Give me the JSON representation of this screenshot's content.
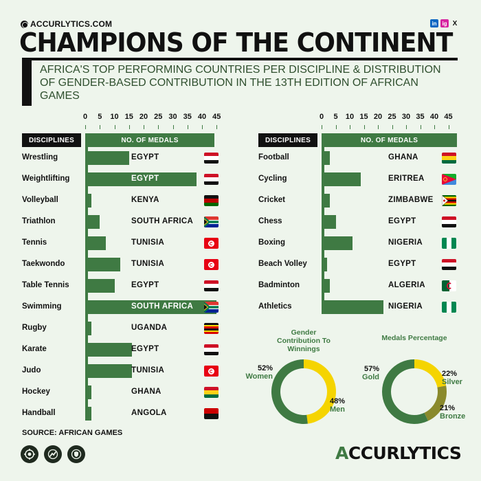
{
  "header": {
    "brand": "ACCURLYTICS.COM",
    "title": "CHAMPIONS OF THE CONTINENT",
    "subtitle": "AFRICA'S TOP PERFORMING COUNTRIES PER DISCIPLINE & DISTRIBUTION OF GENDER-BASED CONTRIBUTION IN  THE 13TH EDITION OF AFRICAN GAMES",
    "social": [
      "in",
      "ig",
      "X"
    ]
  },
  "footer": {
    "source": "SOURCE: AFRICAN GAMES",
    "brand_first": "A",
    "brand_rest": "CCURLYTICS",
    "icons": [
      "target-icon",
      "runner-icon",
      "shield-icon"
    ]
  },
  "colors": {
    "bar": "#3f7a43",
    "dark": "#111111",
    "yellow": "#f5d400",
    "olive": "#8a8a2c",
    "bg": "#eef5ec"
  },
  "chart_data": [
    {
      "type": "bar",
      "orientation": "horizontal",
      "header_label": "DISCIPLINES",
      "value_label": "NO. OF MEDALS",
      "ticks": [
        0,
        5,
        10,
        15,
        20,
        25,
        30,
        35,
        40,
        45
      ],
      "xlim": [
        0,
        47
      ],
      "rows": [
        {
          "discipline": "Wrestling",
          "value": 15,
          "country": "EGYPT",
          "flag": "egypt"
        },
        {
          "discipline": "Weightlifting",
          "value": 38,
          "country": "EGYPT",
          "flag": "egypt"
        },
        {
          "discipline": "Volleyball",
          "value": 2,
          "country": "KENYA",
          "flag": "kenya"
        },
        {
          "discipline": "Triathlon",
          "value": 5,
          "country": "SOUTH AFRICA",
          "flag": "south_africa"
        },
        {
          "discipline": "Tennis",
          "value": 7,
          "country": "TUNISIA",
          "flag": "tunisia"
        },
        {
          "discipline": "Taekwondo",
          "value": 12,
          "country": "TUNISIA",
          "flag": "tunisia"
        },
        {
          "discipline": "Table Tennis",
          "value": 10,
          "country": "EGYPT",
          "flag": "egypt"
        },
        {
          "discipline": "Swimming",
          "value": 45,
          "country": "SOUTH AFRICA",
          "flag": "south_africa"
        },
        {
          "discipline": "Rugby",
          "value": 2,
          "country": "UGANDA",
          "flag": "uganda"
        },
        {
          "discipline": "Karate",
          "value": 16,
          "country": "EGYPT",
          "flag": "egypt"
        },
        {
          "discipline": "Judo",
          "value": 16,
          "country": "TUNISIA",
          "flag": "tunisia"
        },
        {
          "discipline": "Hockey",
          "value": 2,
          "country": "GHANA",
          "flag": "ghana"
        },
        {
          "discipline": "Handball",
          "value": 2,
          "country": "ANGOLA",
          "flag": "angola"
        }
      ]
    },
    {
      "type": "bar",
      "orientation": "horizontal",
      "header_label": "DISCIPLINES",
      "value_label": "NO. OF MEDALS",
      "ticks": [
        0,
        5,
        10,
        15,
        20,
        25,
        30,
        35,
        40,
        45
      ],
      "xlim": [
        0,
        47
      ],
      "rows": [
        {
          "discipline": "Football",
          "value": 3,
          "country": "GHANA",
          "flag": "ghana"
        },
        {
          "discipline": "Cycling",
          "value": 14,
          "country": "ERITREA",
          "flag": "eritrea"
        },
        {
          "discipline": "Cricket",
          "value": 3,
          "country": "ZIMBABWE",
          "flag": "zimbabwe"
        },
        {
          "discipline": "Chess",
          "value": 5,
          "country": "EGYPT",
          "flag": "egypt"
        },
        {
          "discipline": "Boxing",
          "value": 11,
          "country": "NIGERIA",
          "flag": "nigeria"
        },
        {
          "discipline": "Beach Volley",
          "value": 2,
          "country": "EGYPT",
          "flag": "egypt"
        },
        {
          "discipline": "Badminton",
          "value": 3,
          "country": "ALGERIA",
          "flag": "algeria"
        },
        {
          "discipline": "Athletics",
          "value": 22,
          "country": "NIGERIA",
          "flag": "nigeria"
        }
      ]
    },
    {
      "type": "pie",
      "style": "donut",
      "title": "Gender Contribution To Winnings",
      "slices": [
        {
          "name": "Women",
          "value": 52,
          "label": "52%",
          "color": "#3f7a43"
        },
        {
          "name": "Men",
          "value": 48,
          "label": "48%",
          "color": "#f5d400"
        }
      ]
    },
    {
      "type": "pie",
      "style": "donut",
      "title": "Medals Percentage",
      "slices": [
        {
          "name": "Gold",
          "value": 57,
          "label": "57%",
          "color": "#3f7a43"
        },
        {
          "name": "Silver",
          "value": 22,
          "label": "22%",
          "color": "#f5d400"
        },
        {
          "name": "Bronze",
          "value": 21,
          "label": "21%",
          "color": "#8a8a2c"
        }
      ]
    }
  ]
}
